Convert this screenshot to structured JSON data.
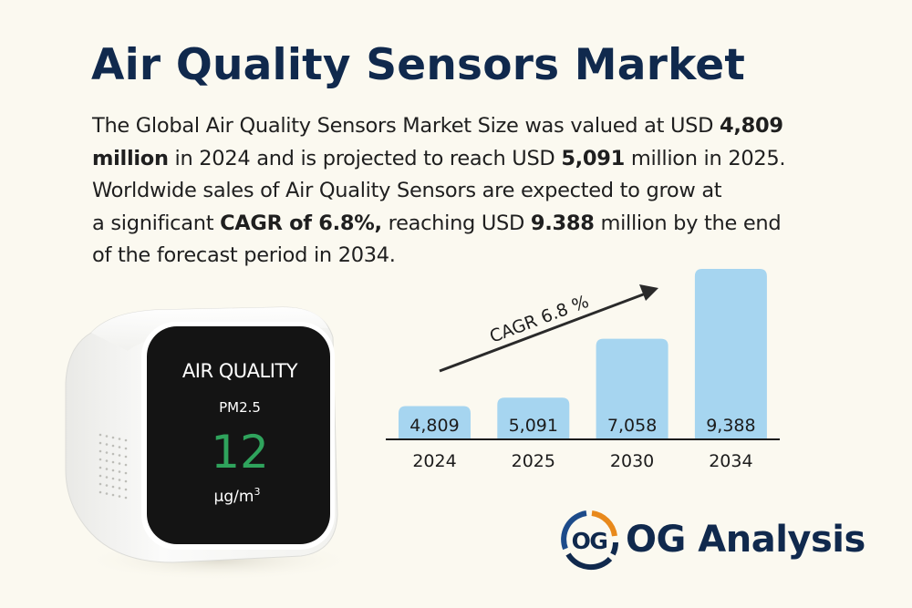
{
  "header": {
    "title": "Air Quality Sensors Market"
  },
  "description": {
    "l1_a": "The Global Air Quality Sensors Market Size was valued at USD ",
    "l1_b": "4,809",
    "l2_a": "million",
    "l2_b": " in 2024 and is projected to reach USD ",
    "l2_c": "5,091",
    "l2_d": " million in 2025.",
    "l3": "Worldwide sales of Air Quality Sensors are expected to grow at",
    "l4_a": "a significant ",
    "l4_b": "CAGR of 6.8%,",
    "l4_c": " reaching USD ",
    "l4_d": "9.388",
    "l4_e": " million by the end",
    "l5": "of the forecast period in 2034."
  },
  "device": {
    "heading": "AIR QUALITY",
    "metric": "PM2.5",
    "value": "12",
    "unit_base": "μg/m",
    "unit_exp": "3",
    "value_color": "#2fa35c"
  },
  "chart_data": {
    "type": "bar",
    "title": "",
    "xlabel": "",
    "ylabel": "",
    "categories": [
      "2024",
      "2025",
      "2030",
      "2034"
    ],
    "values": [
      4809,
      5091,
      7058,
      9388
    ],
    "value_labels": [
      "4,809",
      "5,091",
      "7,058",
      "9,388"
    ],
    "ylim": [
      3700,
      9800
    ],
    "grid": false,
    "annotation": "CAGR 6.8 %",
    "bar_color": "#a6d5f0",
    "axis_color": "#1c1c1c"
  },
  "brand": {
    "mark": "OG",
    "name": "OG Analysis",
    "primary_color": "#10294d",
    "accent_color": "#e8891c"
  }
}
